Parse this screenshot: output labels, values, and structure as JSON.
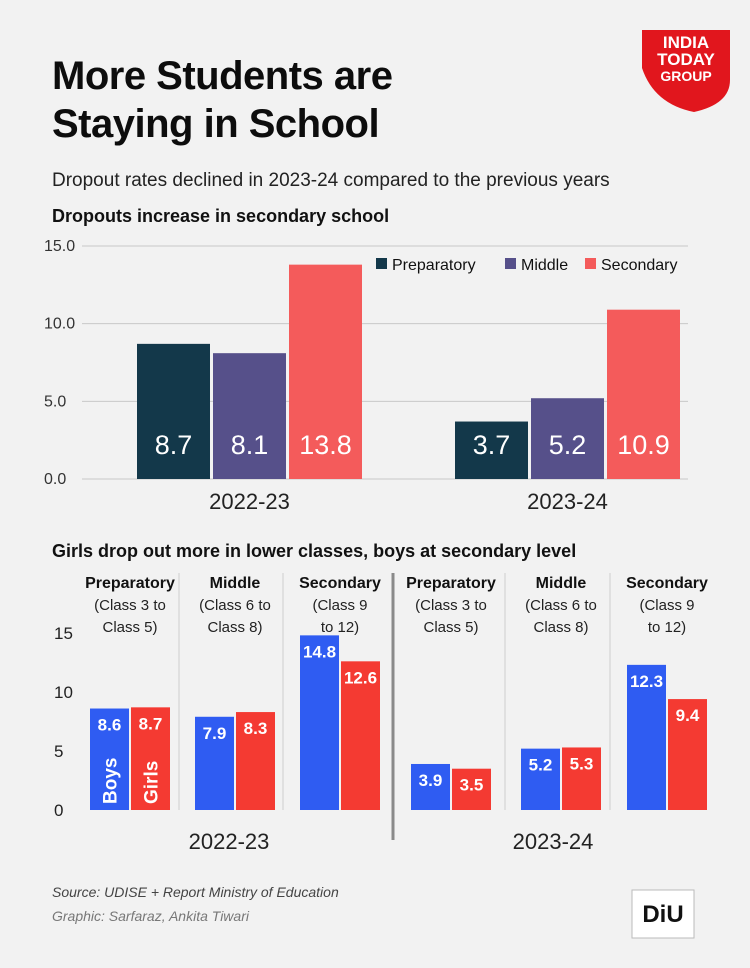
{
  "title_lines": [
    "More Students are",
    "Staying in School"
  ],
  "subtitle": "Dropout rates declined in 2023-24 compared to the previous years",
  "logo": {
    "line1": "INDIA",
    "line2": "TODAY",
    "line3": "GROUP"
  },
  "source": "Source: UDISE + Report  Ministry of Education",
  "credit": "Graphic: Sarfaraz, Ankita Tiwari",
  "diu_logo": "DiU",
  "colors": {
    "preparatory": "#13384a",
    "middle": "#56508a",
    "secondary": "#f45b5b",
    "boys": "#2f5cf2",
    "girls": "#f43a32"
  },
  "chart_data": [
    {
      "type": "bar",
      "title": "Dropouts increase in secondary school",
      "categories": [
        "2022-23",
        "2023-24"
      ],
      "series": [
        {
          "name": "Preparatory",
          "values": [
            8.7,
            3.7
          ]
        },
        {
          "name": "Middle",
          "values": [
            8.1,
            5.2
          ]
        },
        {
          "name": "Secondary",
          "values": [
            13.8,
            10.9
          ]
        }
      ],
      "value_labels": [
        [
          "8.7",
          "3.7"
        ],
        [
          "8.1",
          "5.2"
        ],
        [
          "13.8",
          "10.9"
        ]
      ],
      "ylim": [
        0,
        15
      ],
      "yticks": [
        "0.0",
        "5.0",
        "10.0",
        "15.0"
      ],
      "legend": "top-right",
      "grid": true
    },
    {
      "type": "bar",
      "title": "Girls drop out more in lower classes, boys at secondary level",
      "years": [
        "2022-23",
        "2023-24"
      ],
      "groups": [
        {
          "name": "Preparatory",
          "sub": [
            "(Class 3 to",
            "Class 5)"
          ]
        },
        {
          "name": "Middle",
          "sub": [
            "(Class 6 to",
            "Class 8)"
          ]
        },
        {
          "name": "Secondary",
          "sub": [
            "(Class 9",
            "to 12)"
          ]
        }
      ],
      "series": [
        {
          "name": "Boys",
          "values": [
            [
              8.6,
              7.9,
              14.8
            ],
            [
              3.9,
              5.2,
              12.3
            ]
          ]
        },
        {
          "name": "Girls",
          "values": [
            [
              8.7,
              8.3,
              12.6
            ],
            [
              3.5,
              5.3,
              9.4
            ]
          ]
        }
      ],
      "ylim": [
        0,
        15
      ],
      "yticks": [
        "0",
        "5",
        "10",
        "15"
      ]
    }
  ]
}
